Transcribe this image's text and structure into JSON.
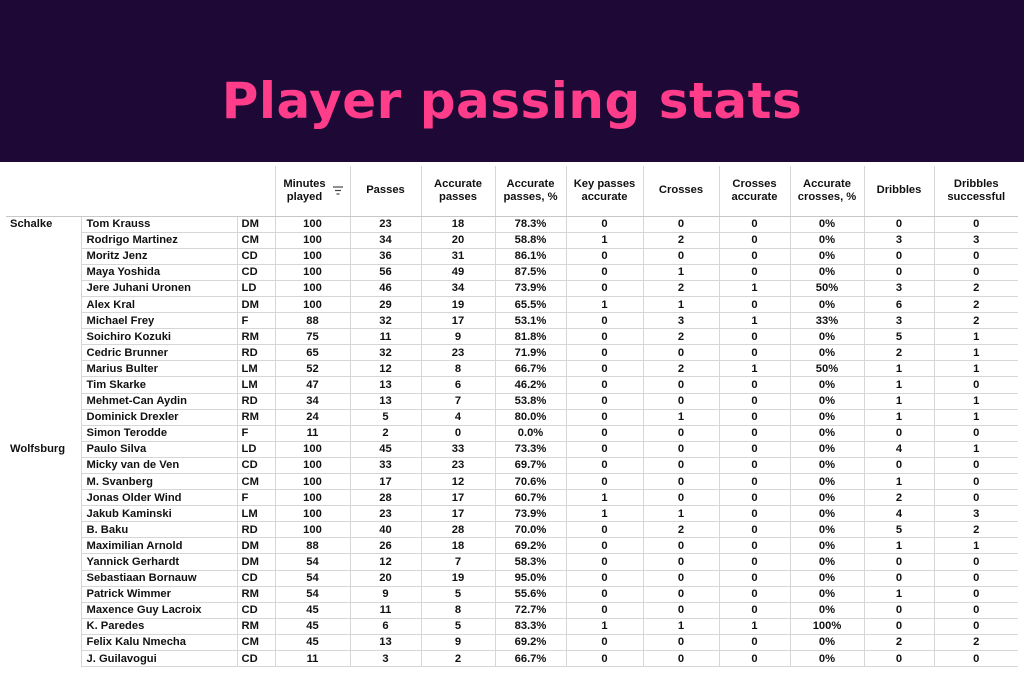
{
  "title": "Player passing stats",
  "colors": {
    "banner_bg": "#1d0836",
    "title": "#ff3d8b"
  },
  "sort_icon": "sort-lines-icon",
  "columns": [
    "Minutes played",
    "Passes",
    "Accurate passes",
    "Accurate passes, %",
    "Key passes accurate",
    "Crosses",
    "Crosses accurate",
    "Accurate crosses, %",
    "Dribbles",
    "Dribbles successful"
  ],
  "rows": [
    {
      "team": "Schalke",
      "player": "Tom Krauss",
      "pos": "DM",
      "stats": [
        "100",
        "23",
        "18",
        "78.3%",
        "0",
        "0",
        "0",
        "0%",
        "0",
        "0"
      ]
    },
    {
      "team": "",
      "player": "Rodrigo Martinez",
      "pos": "CM",
      "stats": [
        "100",
        "34",
        "20",
        "58.8%",
        "1",
        "2",
        "0",
        "0%",
        "3",
        "3"
      ]
    },
    {
      "team": "",
      "player": "Moritz Jenz",
      "pos": "CD",
      "stats": [
        "100",
        "36",
        "31",
        "86.1%",
        "0",
        "0",
        "0",
        "0%",
        "0",
        "0"
      ]
    },
    {
      "team": "",
      "player": "Maya Yoshida",
      "pos": "CD",
      "stats": [
        "100",
        "56",
        "49",
        "87.5%",
        "0",
        "1",
        "0",
        "0%",
        "0",
        "0"
      ]
    },
    {
      "team": "",
      "player": "Jere Juhani Uronen",
      "pos": "LD",
      "stats": [
        "100",
        "46",
        "34",
        "73.9%",
        "0",
        "2",
        "1",
        "50%",
        "3",
        "2"
      ]
    },
    {
      "team": "",
      "player": "Alex Kral",
      "pos": "DM",
      "stats": [
        "100",
        "29",
        "19",
        "65.5%",
        "1",
        "1",
        "0",
        "0%",
        "6",
        "2"
      ]
    },
    {
      "team": "",
      "player": "Michael Frey",
      "pos": "F",
      "stats": [
        "88",
        "32",
        "17",
        "53.1%",
        "0",
        "3",
        "1",
        "33%",
        "3",
        "2"
      ]
    },
    {
      "team": "",
      "player": "Soichiro Kozuki",
      "pos": "RM",
      "stats": [
        "75",
        "11",
        "9",
        "81.8%",
        "0",
        "2",
        "0",
        "0%",
        "5",
        "1"
      ]
    },
    {
      "team": "",
      "player": "Cedric Brunner",
      "pos": "RD",
      "stats": [
        "65",
        "32",
        "23",
        "71.9%",
        "0",
        "0",
        "0",
        "0%",
        "2",
        "1"
      ]
    },
    {
      "team": "",
      "player": "Marius Bulter",
      "pos": "LM",
      "stats": [
        "52",
        "12",
        "8",
        "66.7%",
        "0",
        "2",
        "1",
        "50%",
        "1",
        "1"
      ]
    },
    {
      "team": "",
      "player": "Tim Skarke",
      "pos": "LM",
      "stats": [
        "47",
        "13",
        "6",
        "46.2%",
        "0",
        "0",
        "0",
        "0%",
        "1",
        "0"
      ]
    },
    {
      "team": "",
      "player": "Mehmet-Can Aydin",
      "pos": "RD",
      "stats": [
        "34",
        "13",
        "7",
        "53.8%",
        "0",
        "0",
        "0",
        "0%",
        "1",
        "1"
      ]
    },
    {
      "team": "",
      "player": "Dominick Drexler",
      "pos": "RM",
      "stats": [
        "24",
        "5",
        "4",
        "80.0%",
        "0",
        "1",
        "0",
        "0%",
        "1",
        "1"
      ]
    },
    {
      "team": "",
      "player": "Simon Terodde",
      "pos": "F",
      "stats": [
        "11",
        "2",
        "0",
        "0.0%",
        "0",
        "0",
        "0",
        "0%",
        "0",
        "0"
      ]
    },
    {
      "team": "Wolfsburg",
      "player": "Paulo Silva",
      "pos": "LD",
      "stats": [
        "100",
        "45",
        "33",
        "73.3%",
        "0",
        "0",
        "0",
        "0%",
        "4",
        "1"
      ]
    },
    {
      "team": "",
      "player": "Micky van de Ven",
      "pos": "CD",
      "stats": [
        "100",
        "33",
        "23",
        "69.7%",
        "0",
        "0",
        "0",
        "0%",
        "0",
        "0"
      ]
    },
    {
      "team": "",
      "player": "M. Svanberg",
      "pos": "CM",
      "stats": [
        "100",
        "17",
        "12",
        "70.6%",
        "0",
        "0",
        "0",
        "0%",
        "1",
        "0"
      ]
    },
    {
      "team": "",
      "player": "Jonas Older Wind",
      "pos": "F",
      "stats": [
        "100",
        "28",
        "17",
        "60.7%",
        "1",
        "0",
        "0",
        "0%",
        "2",
        "0"
      ]
    },
    {
      "team": "",
      "player": "Jakub Kaminski",
      "pos": "LM",
      "stats": [
        "100",
        "23",
        "17",
        "73.9%",
        "1",
        "1",
        "0",
        "0%",
        "4",
        "3"
      ]
    },
    {
      "team": "",
      "player": "B. Baku",
      "pos": "RD",
      "stats": [
        "100",
        "40",
        "28",
        "70.0%",
        "0",
        "2",
        "0",
        "0%",
        "5",
        "2"
      ]
    },
    {
      "team": "",
      "player": "Maximilian Arnold",
      "pos": "DM",
      "stats": [
        "88",
        "26",
        "18",
        "69.2%",
        "0",
        "0",
        "0",
        "0%",
        "1",
        "1"
      ]
    },
    {
      "team": "",
      "player": "Yannick Gerhardt",
      "pos": "DM",
      "stats": [
        "54",
        "12",
        "7",
        "58.3%",
        "0",
        "0",
        "0",
        "0%",
        "0",
        "0"
      ]
    },
    {
      "team": "",
      "player": "Sebastiaan Bornauw",
      "pos": "CD",
      "stats": [
        "54",
        "20",
        "19",
        "95.0%",
        "0",
        "0",
        "0",
        "0%",
        "0",
        "0"
      ]
    },
    {
      "team": "",
      "player": "Patrick Wimmer",
      "pos": "RM",
      "stats": [
        "54",
        "9",
        "5",
        "55.6%",
        "0",
        "0",
        "0",
        "0%",
        "1",
        "0"
      ]
    },
    {
      "team": "",
      "player": "Maxence Guy Lacroix",
      "pos": "CD",
      "stats": [
        "45",
        "11",
        "8",
        "72.7%",
        "0",
        "0",
        "0",
        "0%",
        "0",
        "0"
      ]
    },
    {
      "team": "",
      "player": "K.  Paredes",
      "pos": "RM",
      "stats": [
        "45",
        "6",
        "5",
        "83.3%",
        "1",
        "1",
        "1",
        "100%",
        "0",
        "0"
      ]
    },
    {
      "team": "",
      "player": "Felix Kalu Nmecha",
      "pos": "CM",
      "stats": [
        "45",
        "13",
        "9",
        "69.2%",
        "0",
        "0",
        "0",
        "0%",
        "2",
        "2"
      ]
    },
    {
      "team": "",
      "player": "J. Guilavogui",
      "pos": "CD",
      "stats": [
        "11",
        "3",
        "2",
        "66.7%",
        "0",
        "0",
        "0",
        "0%",
        "0",
        "0"
      ]
    }
  ]
}
